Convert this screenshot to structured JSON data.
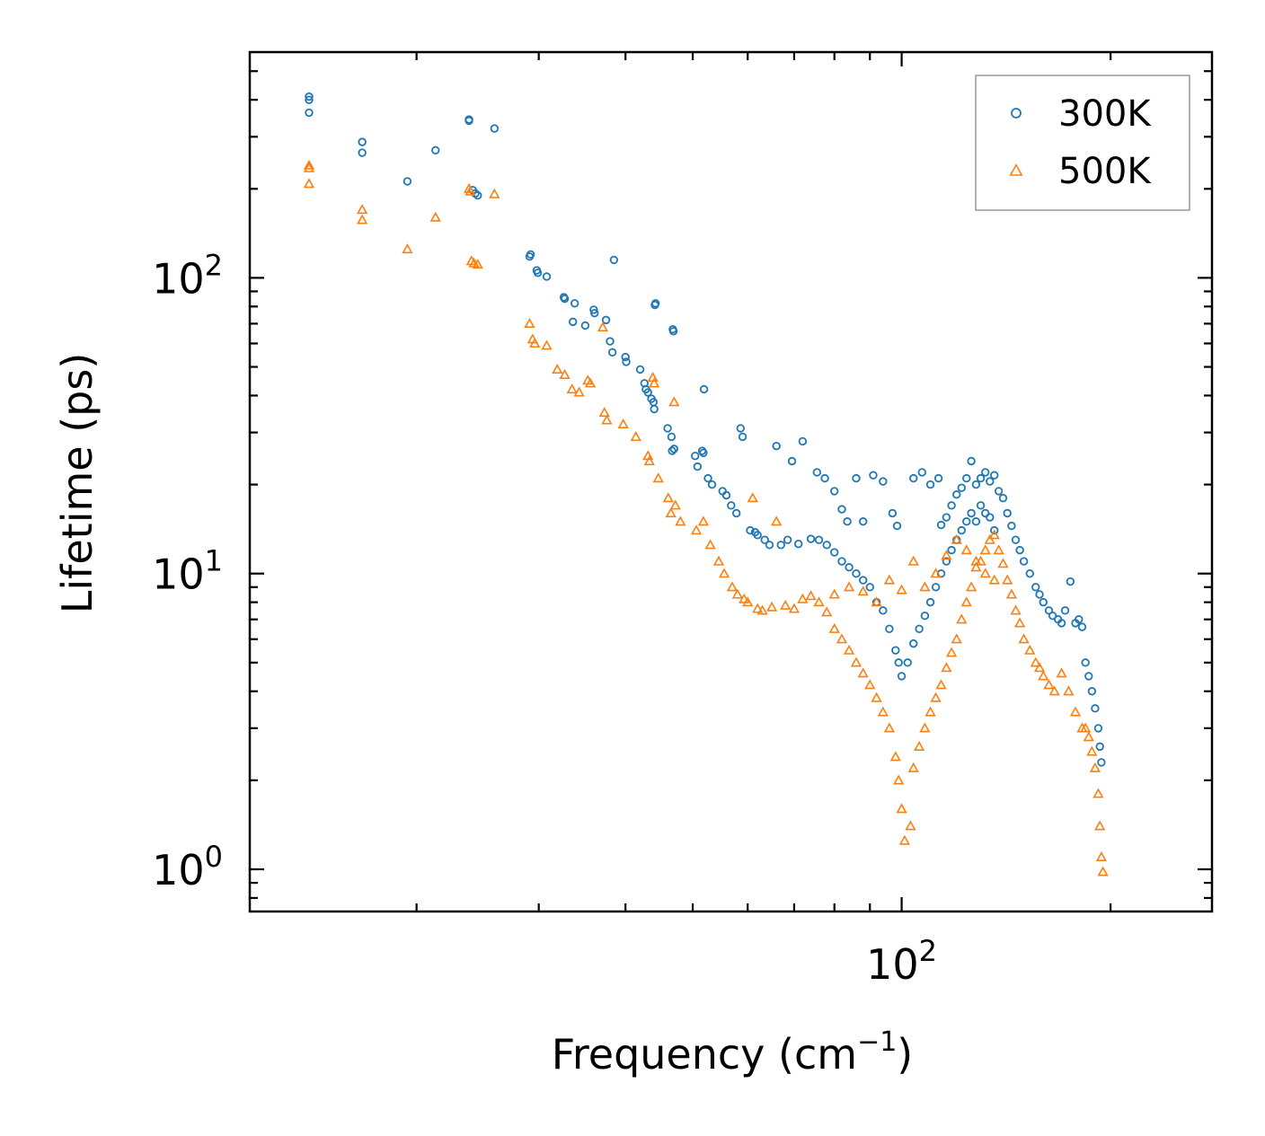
{
  "chart_data": {
    "type": "scatter",
    "xscale": "log",
    "yscale": "log",
    "xlabel": "Frequency (cm",
    "xlabel_sup": "−1",
    "xlabel_close": ")",
    "ylabel": "Lifetime (ps)",
    "xlim": [
      11.5,
      280
    ],
    "ylim": [
      0.72,
      580
    ],
    "yticks": [
      {
        "value": 1,
        "base": "10",
        "exp": "0"
      },
      {
        "value": 10,
        "base": "10",
        "exp": "1"
      },
      {
        "value": 100,
        "base": "10",
        "exp": "2"
      }
    ],
    "xticks": [
      {
        "value": 100,
        "base": "10",
        "exp": "2"
      }
    ],
    "legend_position": "top-right",
    "series": [
      {
        "name": "300K",
        "color": "#1f77b4",
        "marker": "circle",
        "points": [
          [
            14,
            410
          ],
          [
            14,
            400
          ],
          [
            14,
            362
          ],
          [
            16.7,
            288
          ],
          [
            16.7,
            265
          ],
          [
            19.4,
            212
          ],
          [
            21.3,
            270
          ],
          [
            23.8,
            343
          ],
          [
            23.8,
            340
          ],
          [
            24.1,
            198
          ],
          [
            24.3,
            193
          ],
          [
            24.5,
            190
          ],
          [
            25.9,
            320
          ],
          [
            29.1,
            118
          ],
          [
            29.2,
            120
          ],
          [
            29.8,
            106
          ],
          [
            29.9,
            104
          ],
          [
            30.8,
            101
          ],
          [
            32.6,
            86
          ],
          [
            32.7,
            85
          ],
          [
            33.8,
            82
          ],
          [
            33.6,
            71
          ],
          [
            35,
            69
          ],
          [
            36,
            78
          ],
          [
            36.1,
            76
          ],
          [
            37.5,
            72
          ],
          [
            38,
            61
          ],
          [
            38.3,
            56
          ],
          [
            38.5,
            115
          ],
          [
            40,
            54
          ],
          [
            40.1,
            52
          ],
          [
            42,
            49
          ],
          [
            42.6,
            44
          ],
          [
            42.8,
            42
          ],
          [
            43.1,
            41
          ],
          [
            43.6,
            39
          ],
          [
            43.9,
            38
          ],
          [
            44,
            36
          ],
          [
            44.1,
            81
          ],
          [
            44.2,
            82
          ],
          [
            46,
            31
          ],
          [
            46.6,
            29
          ],
          [
            46.8,
            67
          ],
          [
            46.9,
            66
          ],
          [
            46.7,
            26
          ],
          [
            47,
            26.4
          ],
          [
            50.4,
            25
          ],
          [
            50.8,
            23
          ],
          [
            51.6,
            26
          ],
          [
            51.8,
            25.6
          ],
          [
            51.9,
            42
          ],
          [
            52.6,
            21
          ],
          [
            53.3,
            20
          ],
          [
            55.2,
            19
          ],
          [
            55.9,
            18.4
          ],
          [
            56.8,
            17
          ],
          [
            57.8,
            16
          ],
          [
            58.6,
            31
          ],
          [
            59,
            29
          ],
          [
            60.5,
            14
          ],
          [
            61.5,
            13.8
          ],
          [
            62,
            13.5
          ],
          [
            63.5,
            13
          ],
          [
            64.5,
            12.5
          ],
          [
            66,
            27
          ],
          [
            67,
            12.5
          ],
          [
            68.5,
            13
          ],
          [
            69.5,
            24
          ],
          [
            71,
            12.6
          ],
          [
            72,
            28
          ],
          [
            74,
            13.1
          ],
          [
            75.5,
            22
          ],
          [
            77.5,
            21
          ],
          [
            80,
            19
          ],
          [
            82,
            16.5
          ],
          [
            83.5,
            15
          ],
          [
            86,
            21
          ],
          [
            88,
            15
          ],
          [
            91,
            21.5
          ],
          [
            94,
            20.5
          ],
          [
            97,
            16
          ],
          [
            98.5,
            14.5
          ],
          [
            104,
            21
          ],
          [
            107,
            22
          ],
          [
            110,
            20
          ],
          [
            113,
            21
          ],
          [
            114,
            14.6
          ],
          [
            116,
            15.5
          ],
          [
            118,
            17
          ],
          [
            120,
            18.5
          ],
          [
            122,
            19.5
          ],
          [
            124,
            21
          ],
          [
            126,
            24
          ],
          [
            128,
            20
          ],
          [
            130,
            21
          ],
          [
            132,
            22
          ],
          [
            134,
            20.5
          ],
          [
            136,
            21.5
          ],
          [
            138,
            19
          ],
          [
            140,
            18
          ],
          [
            142,
            16
          ],
          [
            144,
            14.5
          ],
          [
            146,
            13
          ],
          [
            148,
            12
          ],
          [
            150,
            11
          ],
          [
            153,
            10
          ],
          [
            156,
            9
          ],
          [
            158,
            8.5
          ],
          [
            160,
            8
          ],
          [
            163,
            7.5
          ],
          [
            165,
            7.2
          ],
          [
            168,
            7
          ],
          [
            170,
            6.8
          ],
          [
            172,
            7.5
          ],
          [
            175,
            9.4
          ],
          [
            178,
            6.8
          ],
          [
            180,
            7
          ],
          [
            182,
            6.6
          ],
          [
            184,
            5
          ],
          [
            186,
            4.5
          ],
          [
            188,
            4
          ],
          [
            190,
            3.5
          ],
          [
            192,
            3
          ],
          [
            193,
            2.6
          ],
          [
            194,
            2.3
          ],
          [
            76,
            13
          ],
          [
            78,
            12.5
          ],
          [
            80,
            11.8
          ],
          [
            82,
            11
          ],
          [
            84,
            10.5
          ],
          [
            86,
            10
          ],
          [
            88,
            9.5
          ],
          [
            90,
            9
          ],
          [
            92,
            8
          ],
          [
            94,
            7.5
          ],
          [
            96,
            6.5
          ],
          [
            98,
            5.5
          ],
          [
            99,
            5
          ],
          [
            100,
            4.5
          ],
          [
            102,
            5
          ],
          [
            104,
            5.8
          ],
          [
            106,
            6.5
          ],
          [
            108,
            7.2
          ],
          [
            110,
            8
          ],
          [
            112,
            9
          ],
          [
            114,
            10
          ],
          [
            116,
            11
          ],
          [
            118,
            12
          ],
          [
            120,
            13
          ],
          [
            122,
            14
          ],
          [
            124,
            15
          ],
          [
            126,
            16
          ],
          [
            128,
            15
          ],
          [
            130,
            17
          ],
          [
            132,
            16
          ],
          [
            134,
            15.5
          ],
          [
            136,
            14
          ]
        ]
      },
      {
        "name": "500K",
        "color": "#ff7f0e",
        "marker": "triangle",
        "points": [
          [
            14,
            240
          ],
          [
            14,
            235
          ],
          [
            14,
            208
          ],
          [
            16.7,
            170
          ],
          [
            16.7,
            157
          ],
          [
            19.4,
            125
          ],
          [
            21.3,
            160
          ],
          [
            23.8,
            200
          ],
          [
            23.9,
            196
          ],
          [
            24,
            114
          ],
          [
            24.2,
            112
          ],
          [
            24.5,
            111
          ],
          [
            25.9,
            192
          ],
          [
            29.1,
            70
          ],
          [
            29.4,
            62
          ],
          [
            29.6,
            60
          ],
          [
            30.8,
            59
          ],
          [
            31.9,
            49
          ],
          [
            32.7,
            47
          ],
          [
            33.5,
            42
          ],
          [
            34.3,
            41
          ],
          [
            35.3,
            45
          ],
          [
            35.6,
            44
          ],
          [
            37.1,
            68
          ],
          [
            37.3,
            35
          ],
          [
            37.6,
            33
          ],
          [
            39.7,
            32
          ],
          [
            41.4,
            29
          ],
          [
            43.1,
            25
          ],
          [
            43.3,
            24
          ],
          [
            43.8,
            46
          ],
          [
            44,
            44
          ],
          [
            44.6,
            21
          ],
          [
            46.1,
            18
          ],
          [
            46.5,
            16
          ],
          [
            47,
            38
          ],
          [
            47.2,
            17
          ],
          [
            48,
            15
          ],
          [
            50.6,
            14
          ],
          [
            51.8,
            15
          ],
          [
            53,
            12.5
          ],
          [
            54.5,
            11
          ],
          [
            55.5,
            10
          ],
          [
            57,
            9
          ],
          [
            58,
            8.5
          ],
          [
            59.3,
            8.2
          ],
          [
            60,
            8
          ],
          [
            61,
            18
          ],
          [
            62,
            7.6
          ],
          [
            63,
            7.5
          ],
          [
            65,
            7.7
          ],
          [
            66,
            15
          ],
          [
            68,
            7.8
          ],
          [
            70,
            7.6
          ],
          [
            72,
            8.2
          ],
          [
            74,
            8.4
          ],
          [
            76,
            8
          ],
          [
            78,
            7.4
          ],
          [
            80,
            6.5
          ],
          [
            82,
            6
          ],
          [
            84,
            5.5
          ],
          [
            86,
            5
          ],
          [
            88,
            4.6
          ],
          [
            90,
            4.2
          ],
          [
            92,
            3.8
          ],
          [
            94,
            3.4
          ],
          [
            96,
            3
          ],
          [
            98,
            2.4
          ],
          [
            99,
            2
          ],
          [
            100,
            1.6
          ],
          [
            101,
            1.25
          ],
          [
            103,
            1.4
          ],
          [
            104,
            2.2
          ],
          [
            106,
            2.6
          ],
          [
            108,
            3
          ],
          [
            110,
            3.4
          ],
          [
            112,
            3.8
          ],
          [
            114,
            4.2
          ],
          [
            116,
            4.8
          ],
          [
            118,
            5.4
          ],
          [
            120,
            6
          ],
          [
            122,
            7
          ],
          [
            124,
            8
          ],
          [
            126,
            9
          ],
          [
            128,
            10.5
          ],
          [
            130,
            11
          ],
          [
            132,
            12
          ],
          [
            134,
            13
          ],
          [
            136,
            13.5
          ],
          [
            138,
            12
          ],
          [
            140,
            10.8
          ],
          [
            142,
            9.5
          ],
          [
            144,
            8.5
          ],
          [
            146,
            7.5
          ],
          [
            148,
            6.8
          ],
          [
            150,
            6
          ],
          [
            153,
            5.5
          ],
          [
            156,
            5
          ],
          [
            158,
            4.8
          ],
          [
            160,
            4.5
          ],
          [
            163,
            4.2
          ],
          [
            166,
            4
          ],
          [
            170,
            4.6
          ],
          [
            174,
            4
          ],
          [
            178,
            3.4
          ],
          [
            182,
            3
          ],
          [
            184,
            3
          ],
          [
            186,
            2.8
          ],
          [
            188,
            2.5
          ],
          [
            190,
            2.2
          ],
          [
            192,
            1.8
          ],
          [
            193,
            1.4
          ],
          [
            194,
            1.1
          ],
          [
            195,
            0.98
          ],
          [
            80,
            8.5
          ],
          [
            84,
            9
          ],
          [
            88,
            8.7
          ],
          [
            92,
            8
          ],
          [
            96,
            9.5
          ],
          [
            100,
            8.8
          ],
          [
            104,
            11
          ],
          [
            108,
            9
          ],
          [
            112,
            10
          ],
          [
            116,
            11.5
          ],
          [
            120,
            13
          ],
          [
            124,
            12
          ],
          [
            128,
            11
          ],
          [
            132,
            10
          ],
          [
            136,
            9.5
          ]
        ]
      }
    ]
  }
}
